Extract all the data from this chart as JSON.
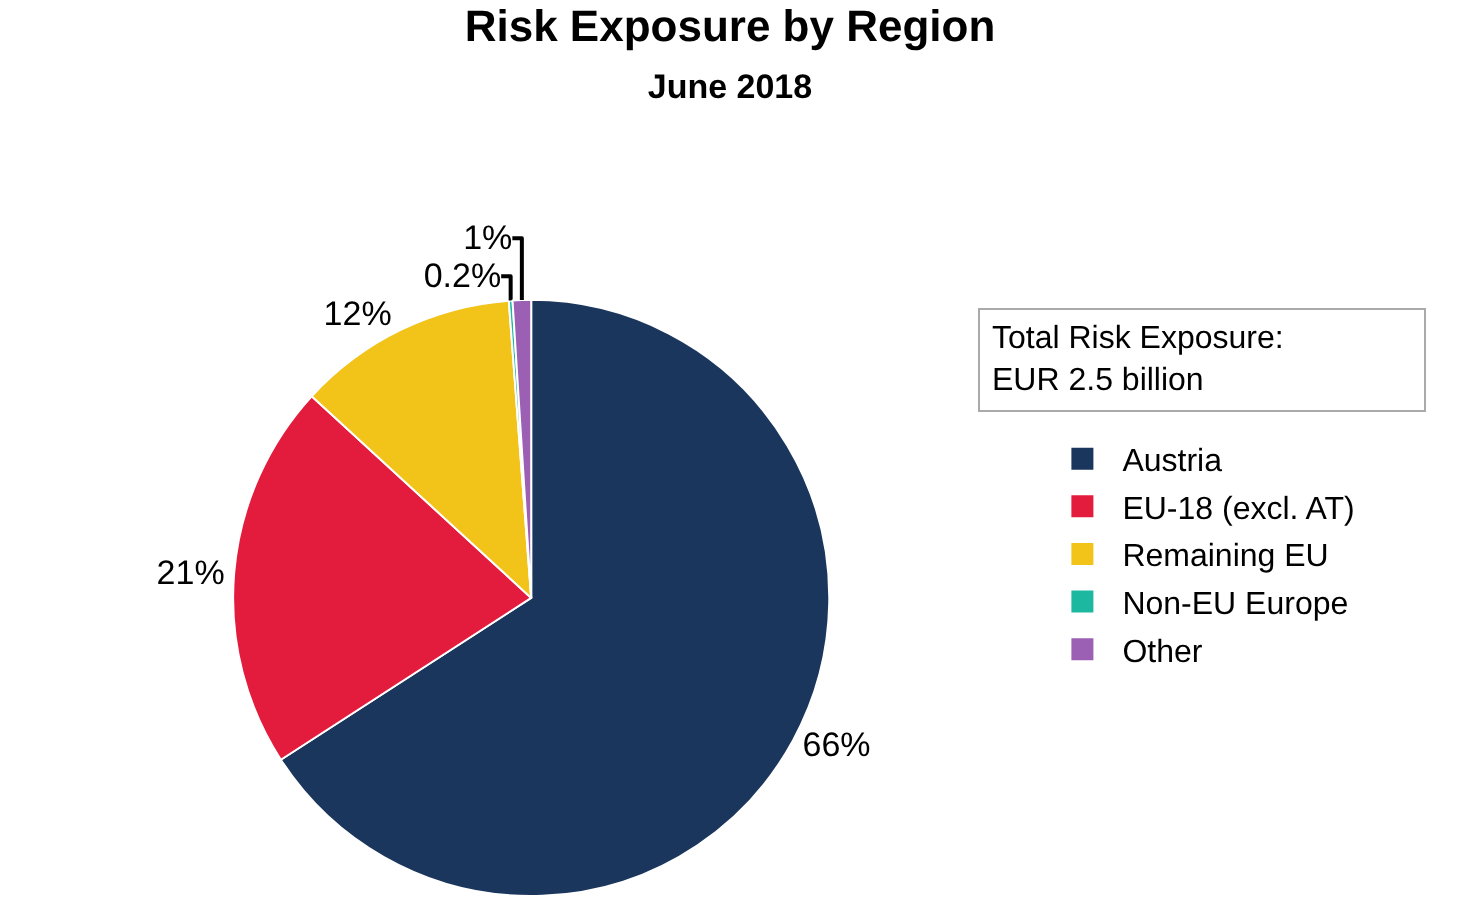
{
  "chart_data": {
    "type": "pie",
    "title": "Risk Exposure by Region",
    "subtitle": "June 2018",
    "categories": [
      "Austria",
      "EU-18 (excl. AT)",
      "Remaining EU",
      "Non-EU Europe",
      "Other"
    ],
    "values": [
      66,
      21,
      12,
      0.2,
      1
    ],
    "value_labels": [
      "66%",
      "21%",
      "12%",
      "0.2%",
      "1%"
    ],
    "colors": [
      "#1b365d",
      "#e31c3d",
      "#f2c318",
      "#1cb8a0",
      "#9b5fb4"
    ],
    "annotations": [
      "Total Risk Exposure:\nEUR 2.5 billion"
    ],
    "legend": "right"
  }
}
